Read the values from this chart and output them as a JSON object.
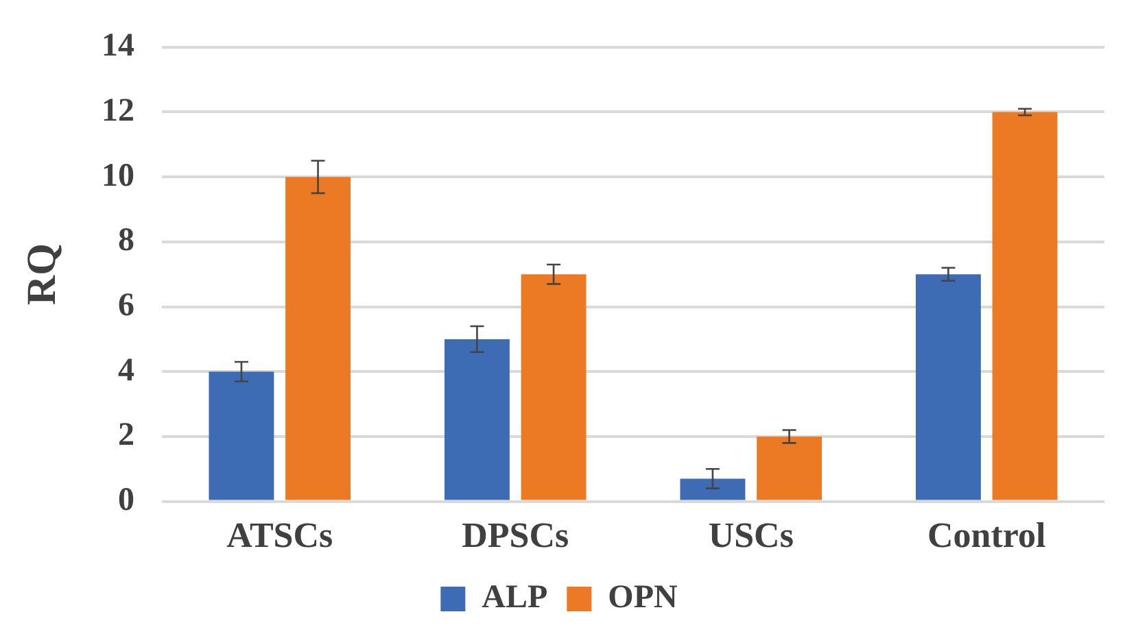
{
  "chart_data": {
    "type": "bar",
    "ylabel": "RQ",
    "categories": [
      "ATSCs",
      "DPSCs",
      "USCs",
      "Control"
    ],
    "series": [
      {
        "name": "ALP",
        "color": "#3d6cb4",
        "values": [
          4,
          5,
          0.7,
          7
        ],
        "errors": [
          0.3,
          0.4,
          0.3,
          0.2
        ]
      },
      {
        "name": "OPN",
        "color": "#ec7a24",
        "values": [
          10,
          7,
          2,
          12
        ],
        "errors": [
          0.5,
          0.3,
          0.2,
          0.1
        ]
      }
    ],
    "ylim": [
      0,
      14
    ],
    "yticks": [
      0,
      2,
      4,
      6,
      8,
      10,
      12,
      14
    ],
    "grid": "y",
    "legend": "bottom"
  }
}
